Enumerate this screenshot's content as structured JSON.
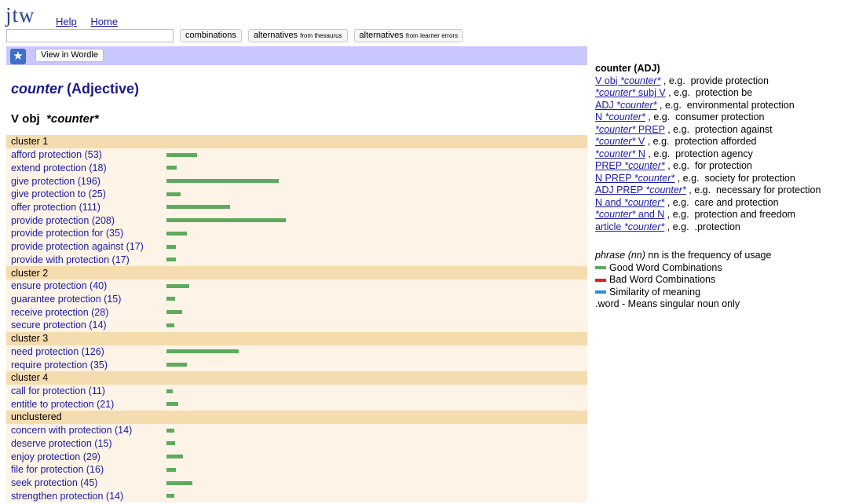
{
  "app": {
    "logo": "jtw",
    "links": [
      "Help",
      "Home"
    ]
  },
  "search": {
    "placeholder": ""
  },
  "buttons": [
    {
      "main": "combinations",
      "sub": ""
    },
    {
      "main": "alternatives",
      "sub": "from thesaurus"
    },
    {
      "main": "alternatives",
      "sub": "from learner errors"
    }
  ],
  "wordle": {
    "label": "View in Wordle",
    "icon": "star-icon"
  },
  "title": {
    "word": "counter",
    "pos": "(Adjective)"
  },
  "section": {
    "pattern": "V obj",
    "word": "*counter*"
  },
  "rows": [
    {
      "type": "cluster",
      "label": "cluster 1"
    },
    {
      "type": "entry",
      "label": "afford protection (53)",
      "count": 53
    },
    {
      "type": "entry",
      "label": "extend protection (18)",
      "count": 18
    },
    {
      "type": "entry",
      "label": "give protection (196)",
      "count": 196
    },
    {
      "type": "entry",
      "label": "give protection to (25)",
      "count": 25
    },
    {
      "type": "entry",
      "label": "offer protection (111)",
      "count": 111
    },
    {
      "type": "entry",
      "label": "provide protection (208)",
      "count": 208
    },
    {
      "type": "entry",
      "label": "provide protection for (35)",
      "count": 35
    },
    {
      "type": "entry",
      "label": "provide protection against (17)",
      "count": 17
    },
    {
      "type": "entry",
      "label": "provide with protection (17)",
      "count": 17
    },
    {
      "type": "cluster",
      "label": "cluster 2"
    },
    {
      "type": "entry",
      "label": "ensure protection (40)",
      "count": 40
    },
    {
      "type": "entry",
      "label": "guarantee protection (15)",
      "count": 15
    },
    {
      "type": "entry",
      "label": "receive protection (28)",
      "count": 28
    },
    {
      "type": "entry",
      "label": "secure protection (14)",
      "count": 14
    },
    {
      "type": "cluster",
      "label": "cluster 3"
    },
    {
      "type": "entry",
      "label": "need protection (126)",
      "count": 126
    },
    {
      "type": "entry",
      "label": "require protection (35)",
      "count": 35
    },
    {
      "type": "cluster",
      "label": "cluster 4"
    },
    {
      "type": "entry",
      "label": "call for protection (11)",
      "count": 11
    },
    {
      "type": "entry",
      "label": "entitle to protection (21)",
      "count": 21
    },
    {
      "type": "cluster",
      "label": "unclustered"
    },
    {
      "type": "entry",
      "label": "concern with protection (14)",
      "count": 14
    },
    {
      "type": "entry",
      "label": "deserve protection (15)",
      "count": 15
    },
    {
      "type": "entry",
      "label": "enjoy protection (29)",
      "count": 29
    },
    {
      "type": "entry",
      "label": "file for protection (16)",
      "count": 16
    },
    {
      "type": "entry",
      "label": "seek protection (45)",
      "count": 45
    },
    {
      "type": "entry",
      "label": "strengthen protection (14)",
      "count": 14
    }
  ],
  "sidebar": {
    "heading": "counter (ADJ)",
    "patterns": [
      {
        "link": "V obj *counter*",
        "example": ", e.g.  provide protection"
      },
      {
        "link": "*counter* subj V",
        "example": ", e.g.  protection be"
      },
      {
        "link": "ADJ *counter*",
        "example": ", e.g.  environmental protection"
      },
      {
        "link": "N *counter*",
        "example": ", e.g.  consumer protection"
      },
      {
        "link": "*counter* PREP",
        "example": ", e.g.  protection against"
      },
      {
        "link": "*counter* V",
        "example": ", e.g.  protection afforded"
      },
      {
        "link": "*counter* N",
        "example": ", e.g.  protection agency"
      },
      {
        "link": "PREP *counter*",
        "example": ", e.g.  for protection"
      },
      {
        "link": "N PREP *counter*",
        "example": ", e.g.  society for protection"
      },
      {
        "link": "ADJ PREP *counter*",
        "example": ", e.g.  necessary for protection"
      },
      {
        "link": "N and *counter*",
        "example": ", e.g.  care and protection"
      },
      {
        "link": "*counter* and N",
        "example": ", e.g.  protection and freedom"
      },
      {
        "link": "article *counter*",
        "example": ", e.g.  .protection"
      }
    ]
  },
  "legend": {
    "phrase": "phrase (nn)",
    "phrase_desc": " nn is the frequency of usage",
    "items": [
      {
        "label": "Good Word Combinations",
        "color": "#5faa5f"
      },
      {
        "label": "Bad Word Combinations",
        "color": "#e32020"
      },
      {
        "label": "Similarity of meaning",
        "color": "#2f8fe0"
      }
    ],
    "note": ".word - Means singular noun only"
  },
  "colors": {
    "bar": "#5faa5f",
    "cluster_bg": "#f5dcae",
    "entry_bg": "#fdf3e6",
    "wordle_bar": "#c8c8ff"
  }
}
